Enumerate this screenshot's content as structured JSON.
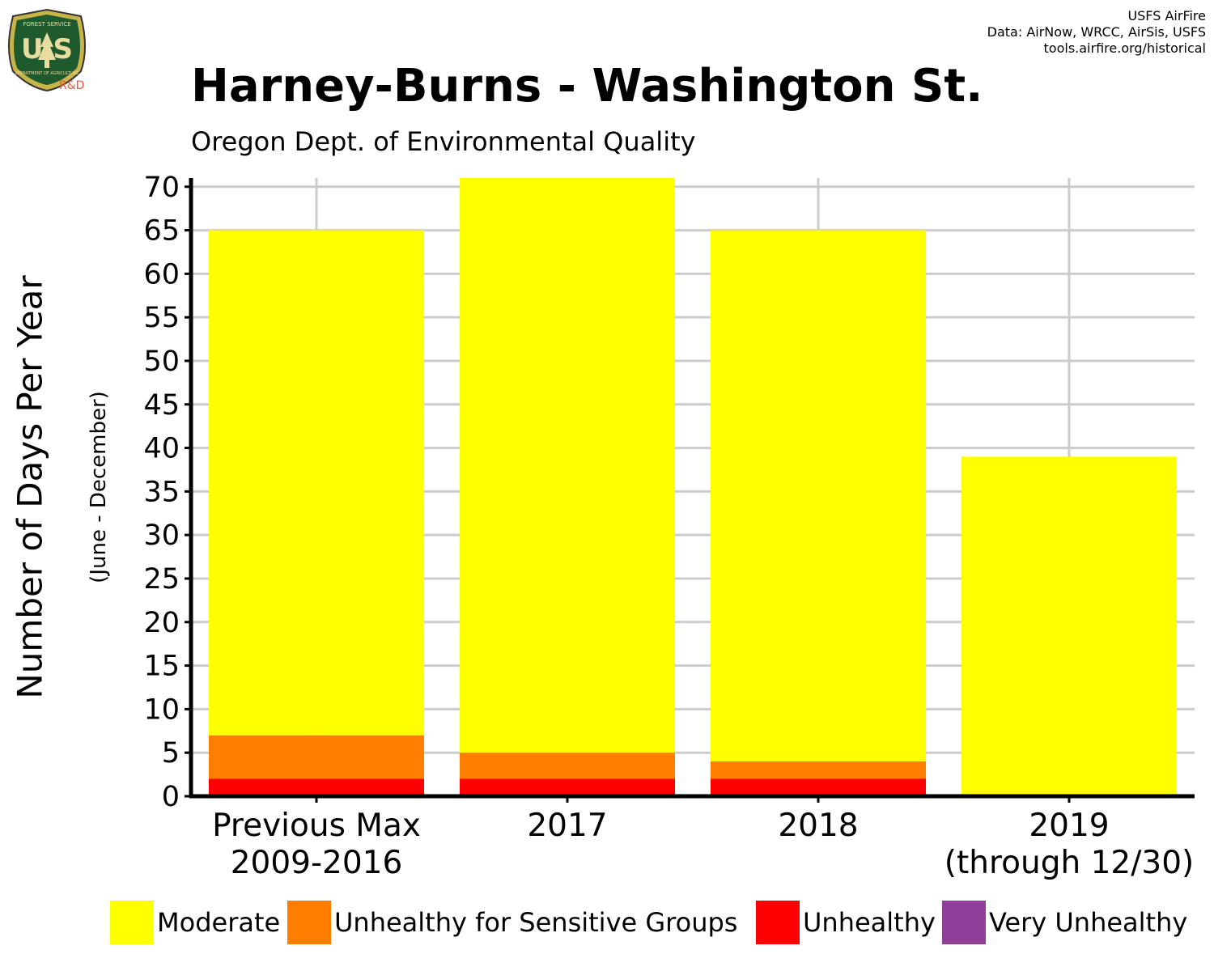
{
  "credits": {
    "line1": "USFS AirFire",
    "line2": "Data: AirNow, WRCC, AirSis, USFS",
    "line3": "tools.airfire.org/historical"
  },
  "logo": {
    "top_text": "FOREST SERVICE",
    "letters": "U S",
    "bottom_text": "DEPARTMENT OF AGRICULTURE",
    "rd": "R&D"
  },
  "colors": {
    "moderate": "#ffff00",
    "usg": "#ff7e00",
    "unhealthy": "#ff0000",
    "very_unhealthy": "#8f3f97",
    "grid": "#cccccc",
    "axis": "#000000"
  },
  "chart_data": {
    "type": "bar",
    "stacked": true,
    "title": "Harney-Burns - Washington St.",
    "subtitle": "Oregon Dept. of Environmental Quality",
    "ylabel": "Number of Days Per Year",
    "ylabel_sub": "(June - December)",
    "ylim": [
      0,
      71
    ],
    "yticks": [
      0,
      5,
      10,
      15,
      20,
      25,
      30,
      35,
      40,
      45,
      50,
      55,
      60,
      65,
      70
    ],
    "grid": true,
    "legend_position": "bottom",
    "categories": [
      [
        "Previous Max",
        "2009-2016"
      ],
      [
        "2017"
      ],
      [
        "2018"
      ],
      [
        "2019",
        "(through 12/30)"
      ]
    ],
    "series": [
      {
        "name": "Unhealthy",
        "color_key": "unhealthy",
        "values": [
          2,
          2,
          2,
          0
        ]
      },
      {
        "name": "Unhealthy for Sensitive Groups",
        "color_key": "usg",
        "values": [
          5,
          3,
          2,
          0
        ]
      },
      {
        "name": "Moderate",
        "color_key": "moderate",
        "values": [
          58,
          66,
          61,
          39
        ]
      },
      {
        "name": "Very Unhealthy",
        "color_key": "very_unhealthy",
        "values": [
          0,
          0,
          0,
          0
        ]
      }
    ],
    "legend": [
      {
        "label": "Moderate",
        "color_key": "moderate"
      },
      {
        "label": "Unhealthy for Sensitive Groups",
        "color_key": "usg"
      },
      {
        "label": "Unhealthy",
        "color_key": "unhealthy"
      },
      {
        "label": "Very Unhealthy",
        "color_key": "very_unhealthy"
      }
    ]
  }
}
